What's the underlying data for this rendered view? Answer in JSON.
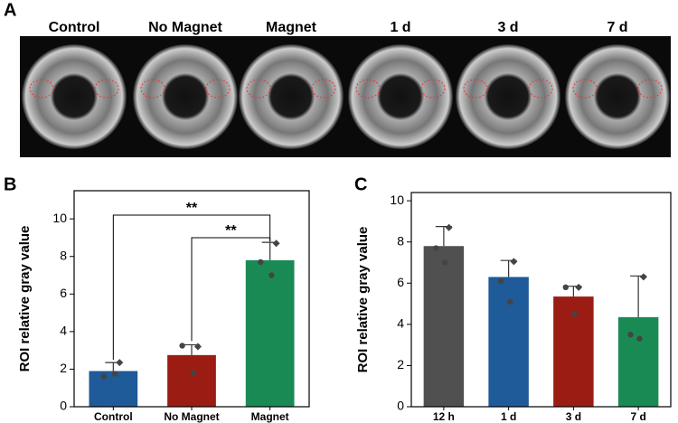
{
  "panel_a": {
    "label": "A",
    "columns": [
      "Control",
      "No Magnet",
      "Magnet",
      "1 d",
      "3 d",
      "7 d"
    ]
  },
  "chart_data": [
    {
      "type": "bar",
      "panel_label": "B",
      "ylabel": "ROI relative gray value",
      "categories": [
        "Control",
        "No Magnet",
        "Magnet"
      ],
      "values": [
        1.9,
        2.75,
        7.8
      ],
      "errors": [
        0.45,
        0.55,
        0.95
      ],
      "points": [
        [
          2.35,
          1.6,
          1.75
        ],
        [
          3.2,
          3.25,
          1.8
        ],
        [
          8.7,
          7.7,
          7.0
        ]
      ],
      "colors": [
        "#1f5a99",
        "#9b1c13",
        "#1a8a55"
      ],
      "annotations": [
        "**",
        "**"
      ],
      "ylim": [
        0,
        11.5
      ],
      "yticks": [
        0,
        2,
        4,
        6,
        8,
        10
      ]
    },
    {
      "type": "bar",
      "panel_label": "C",
      "ylabel": "ROI relative gray value",
      "categories": [
        "12 h",
        "1 d",
        "3 d",
        "7 d"
      ],
      "values": [
        7.8,
        6.3,
        5.35,
        4.35
      ],
      "errors": [
        0.95,
        0.8,
        0.5,
        2.0
      ],
      "points": [
        [
          8.7,
          7.7,
          7.0
        ],
        [
          7.05,
          6.1,
          5.1
        ],
        [
          5.8,
          5.8,
          4.5
        ],
        [
          6.3,
          3.5,
          3.3
        ]
      ],
      "colors": [
        "#505050",
        "#1f5a99",
        "#9b1c13",
        "#1a8a55"
      ],
      "ylim": [
        0,
        10.4
      ],
      "yticks": [
        0,
        2,
        4,
        6,
        8,
        10
      ]
    }
  ]
}
